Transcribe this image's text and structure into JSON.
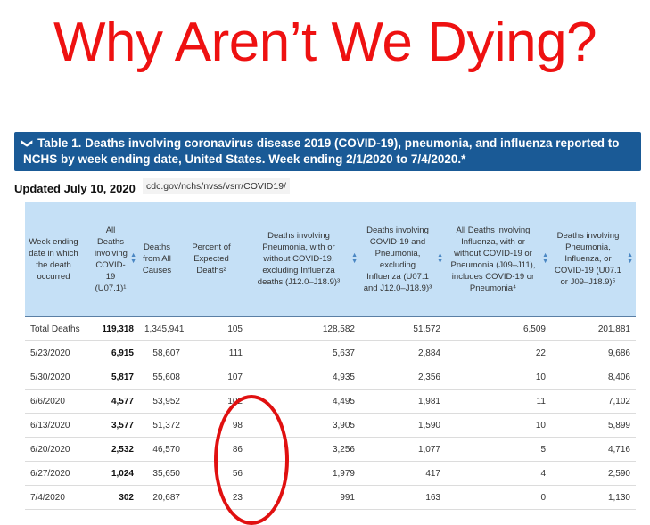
{
  "title": "Why Aren’t We Dying?",
  "banner": {
    "chevron": "❯",
    "text": "Table 1. Deaths involving coronavirus disease 2019 (COVID-19), pneumonia, and influenza reported to NCHS by week ending date, United States. Week ending 2/1/2020 to 7/4/2020.*"
  },
  "updated": "Updated July 10, 2020",
  "source": "cdc.gov/nchs/nvss/vsrr/COVID19/",
  "table": {
    "headers": [
      "Week ending date in which the death occurred",
      "All Deaths involving COVID-19 (U07.1)¹",
      "Deaths from All Causes",
      "Percent of Expected Deaths²",
      "Deaths involving Pneumonia, with or without COVID-19, excluding Influenza deaths (J12.0–J18.9)³",
      "Deaths involving COVID-19 and Pneumonia, excluding Influenza (U07.1 and J12.0–J18.9)³",
      "All Deaths involving Influenza, with or without COVID-19 or Pneumonia (J09–J11), includes COVID-19 or Pneumonia⁴",
      "Deaths involving Pneumonia, Influenza, or COVID-19 (U07.1 or J09–J18.9)⁵"
    ],
    "rows": [
      [
        "Total Deaths",
        "119,318",
        "1,345,941",
        "105",
        "128,582",
        "51,572",
        "6,509",
        "201,881"
      ],
      [
        "5/23/2020",
        "6,915",
        "58,607",
        "111",
        "5,637",
        "2,884",
        "22",
        "9,686"
      ],
      [
        "5/30/2020",
        "5,817",
        "55,608",
        "107",
        "4,935",
        "2,356",
        "10",
        "8,406"
      ],
      [
        "6/6/2020",
        "4,577",
        "53,952",
        "102",
        "4,495",
        "1,981",
        "11",
        "7,102"
      ],
      [
        "6/13/2020",
        "3,577",
        "51,372",
        "98",
        "3,905",
        "1,590",
        "10",
        "5,899"
      ],
      [
        "6/20/2020",
        "2,532",
        "46,570",
        "86",
        "3,256",
        "1,077",
        "5",
        "4,716"
      ],
      [
        "6/27/2020",
        "1,024",
        "35,650",
        "56",
        "1,979",
        "417",
        "4",
        "2,590"
      ],
      [
        "7/4/2020",
        "302",
        "20,687",
        "23",
        "991",
        "163",
        "0",
        "1,130"
      ]
    ]
  }
}
